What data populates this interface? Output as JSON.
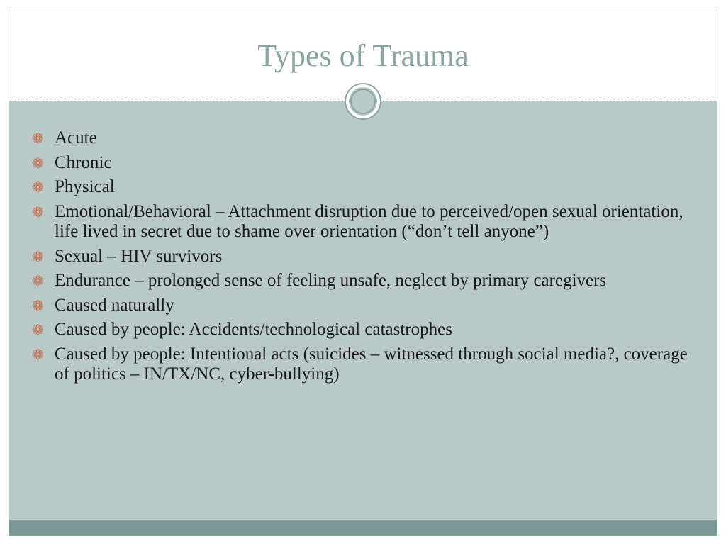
{
  "slide": {
    "title": "Types of Trauma",
    "title_color": "#8aa5a3",
    "title_fontsize": 44,
    "background_color": "#ffffff",
    "body_background": "#b8c9c8",
    "footer_background": "#7e9a98",
    "border_color": "#8aa5a3",
    "bullet_color": "#c36a4a",
    "bullet_symbol": "❁",
    "text_color": "#1a1a1a",
    "body_fontsize": 25,
    "bullets": [
      "Acute",
      "Chronic",
      "Physical",
      "Emotional/Behavioral – Attachment disruption due to perceived/open sexual orientation, life lived in secret due to shame over orientation (“don’t tell anyone”)",
      "Sexual – HIV survivors",
      "Endurance – prolonged sense of feeling unsafe, neglect by primary caregivers",
      "Caused naturally",
      "Caused by people:  Accidents/technological catastrophes",
      "Caused by people:  Intentional acts (suicides – witnessed through social media?, coverage of politics – IN/TX/NC, cyber-bullying)"
    ]
  }
}
